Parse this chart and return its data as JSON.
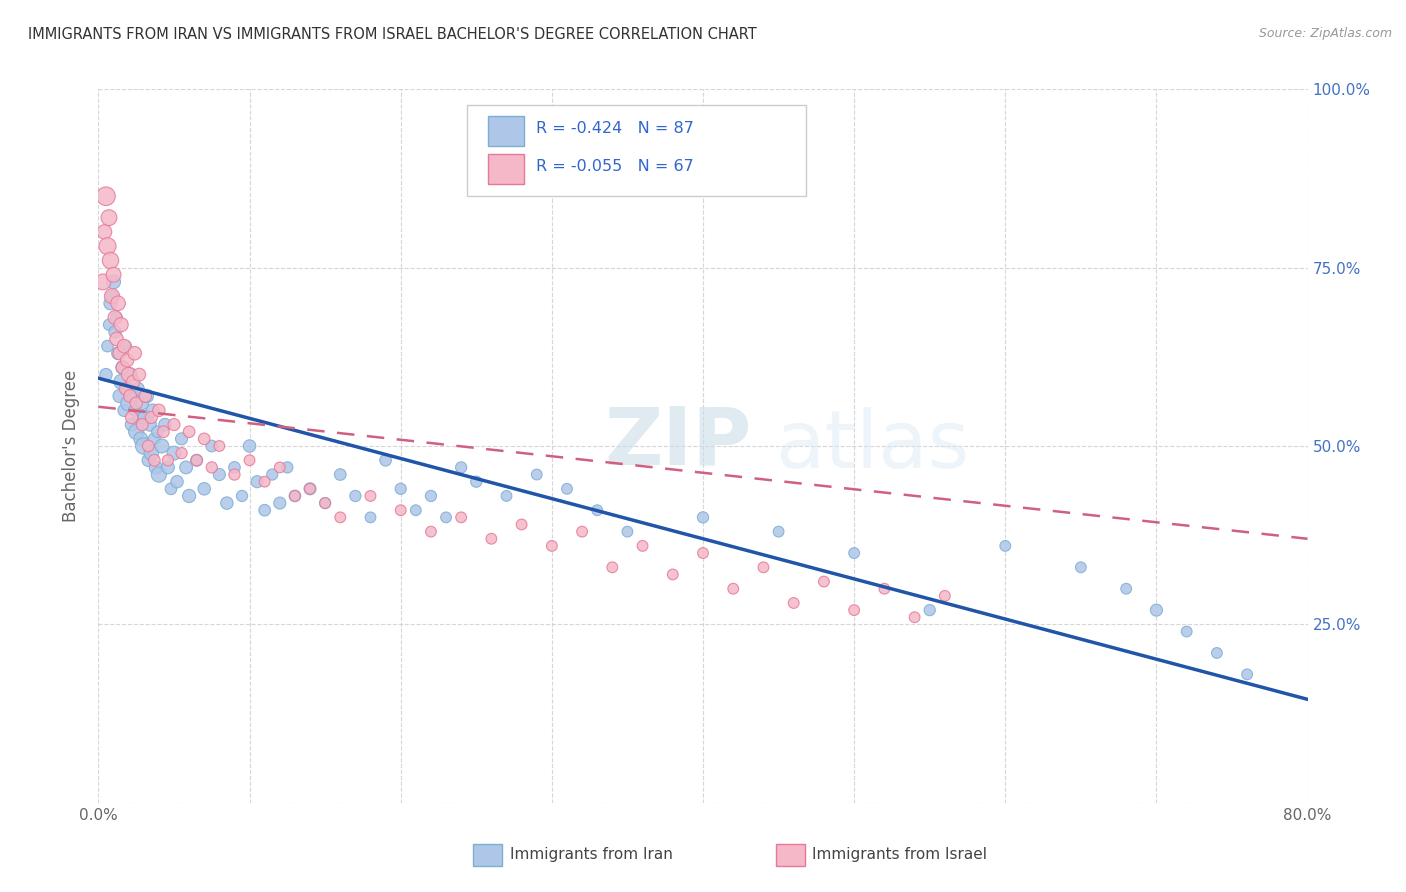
{
  "title": "IMMIGRANTS FROM IRAN VS IMMIGRANTS FROM ISRAEL BACHELOR'S DEGREE CORRELATION CHART",
  "source": "Source: ZipAtlas.com",
  "ylabel": "Bachelor's Degree",
  "xmin": 0.0,
  "xmax": 0.8,
  "ymin": 0.0,
  "ymax": 1.0,
  "iran_color": "#aec6e8",
  "iran_edge_color": "#7bafd4",
  "israel_color": "#f4b8c8",
  "israel_edge_color": "#e87898",
  "iran_line_color": "#2155a8",
  "israel_line_color": "#d06080",
  "legend_iran_label": "Immigrants from Iran",
  "legend_israel_label": "Immigrants from Israel",
  "iran_R": -0.424,
  "iran_N": 87,
  "israel_R": -0.055,
  "israel_N": 67,
  "watermark_zip": "ZIP",
  "watermark_atlas": "atlas",
  "iran_line_x0": 0.0,
  "iran_line_y0": 0.595,
  "iran_line_x1": 0.8,
  "iran_line_y1": 0.145,
  "israel_line_x0": 0.0,
  "israel_line_y0": 0.555,
  "israel_line_x1": 0.8,
  "israel_line_y1": 0.37,
  "iran_scatter_x": [
    0.005,
    0.006,
    0.007,
    0.008,
    0.009,
    0.01,
    0.011,
    0.012,
    0.013,
    0.014,
    0.015,
    0.016,
    0.017,
    0.018,
    0.019,
    0.02,
    0.021,
    0.022,
    0.023,
    0.024,
    0.025,
    0.026,
    0.027,
    0.028,
    0.029,
    0.03,
    0.031,
    0.032,
    0.033,
    0.034,
    0.035,
    0.036,
    0.037,
    0.038,
    0.039,
    0.04,
    0.042,
    0.044,
    0.046,
    0.048,
    0.05,
    0.052,
    0.055,
    0.058,
    0.06,
    0.065,
    0.07,
    0.075,
    0.08,
    0.085,
    0.09,
    0.095,
    0.1,
    0.105,
    0.11,
    0.115,
    0.12,
    0.125,
    0.13,
    0.14,
    0.15,
    0.16,
    0.17,
    0.18,
    0.19,
    0.2,
    0.21,
    0.22,
    0.23,
    0.24,
    0.25,
    0.27,
    0.29,
    0.31,
    0.33,
    0.35,
    0.4,
    0.45,
    0.5,
    0.55,
    0.6,
    0.65,
    0.68,
    0.7,
    0.72,
    0.74,
    0.76
  ],
  "iran_scatter_y": [
    0.6,
    0.64,
    0.67,
    0.7,
    0.71,
    0.73,
    0.66,
    0.68,
    0.63,
    0.57,
    0.59,
    0.61,
    0.55,
    0.64,
    0.58,
    0.56,
    0.6,
    0.53,
    0.57,
    0.55,
    0.52,
    0.58,
    0.54,
    0.51,
    0.56,
    0.5,
    0.54,
    0.57,
    0.48,
    0.53,
    0.49,
    0.55,
    0.51,
    0.47,
    0.52,
    0.46,
    0.5,
    0.53,
    0.47,
    0.44,
    0.49,
    0.45,
    0.51,
    0.47,
    0.43,
    0.48,
    0.44,
    0.5,
    0.46,
    0.42,
    0.47,
    0.43,
    0.5,
    0.45,
    0.41,
    0.46,
    0.42,
    0.47,
    0.43,
    0.44,
    0.42,
    0.46,
    0.43,
    0.4,
    0.48,
    0.44,
    0.41,
    0.43,
    0.4,
    0.47,
    0.45,
    0.43,
    0.46,
    0.44,
    0.41,
    0.38,
    0.4,
    0.38,
    0.35,
    0.27,
    0.36,
    0.33,
    0.3,
    0.27,
    0.24,
    0.21,
    0.18
  ],
  "iran_scatter_size": [
    80,
    70,
    65,
    90,
    75,
    100,
    80,
    70,
    85,
    90,
    110,
    95,
    80,
    70,
    90,
    130,
    100,
    85,
    75,
    70,
    120,
    90,
    80,
    100,
    85,
    140,
    110,
    95,
    80,
    90,
    110,
    85,
    75,
    90,
    70,
    120,
    100,
    80,
    85,
    70,
    100,
    80,
    75,
    85,
    90,
    75,
    80,
    70,
    75,
    80,
    70,
    65,
    80,
    75,
    70,
    65,
    75,
    65,
    70,
    75,
    65,
    70,
    65,
    60,
    70,
    65,
    60,
    65,
    60,
    65,
    65,
    60,
    60,
    60,
    60,
    60,
    65,
    60,
    60,
    65,
    60,
    60,
    60,
    75,
    60,
    60,
    60
  ],
  "israel_scatter_x": [
    0.003,
    0.004,
    0.005,
    0.006,
    0.007,
    0.008,
    0.009,
    0.01,
    0.011,
    0.012,
    0.013,
    0.014,
    0.015,
    0.016,
    0.017,
    0.018,
    0.019,
    0.02,
    0.021,
    0.022,
    0.023,
    0.024,
    0.025,
    0.027,
    0.029,
    0.031,
    0.033,
    0.035,
    0.037,
    0.04,
    0.043,
    0.046,
    0.05,
    0.055,
    0.06,
    0.065,
    0.07,
    0.075,
    0.08,
    0.09,
    0.1,
    0.11,
    0.12,
    0.13,
    0.14,
    0.15,
    0.16,
    0.18,
    0.2,
    0.22,
    0.24,
    0.26,
    0.28,
    0.3,
    0.32,
    0.34,
    0.36,
    0.38,
    0.4,
    0.42,
    0.44,
    0.46,
    0.48,
    0.5,
    0.52,
    0.54,
    0.56
  ],
  "israel_scatter_y": [
    0.73,
    0.8,
    0.85,
    0.78,
    0.82,
    0.76,
    0.71,
    0.74,
    0.68,
    0.65,
    0.7,
    0.63,
    0.67,
    0.61,
    0.64,
    0.58,
    0.62,
    0.6,
    0.57,
    0.54,
    0.59,
    0.63,
    0.56,
    0.6,
    0.53,
    0.57,
    0.5,
    0.54,
    0.48,
    0.55,
    0.52,
    0.48,
    0.53,
    0.49,
    0.52,
    0.48,
    0.51,
    0.47,
    0.5,
    0.46,
    0.48,
    0.45,
    0.47,
    0.43,
    0.44,
    0.42,
    0.4,
    0.43,
    0.41,
    0.38,
    0.4,
    0.37,
    0.39,
    0.36,
    0.38,
    0.33,
    0.36,
    0.32,
    0.35,
    0.3,
    0.33,
    0.28,
    0.31,
    0.27,
    0.3,
    0.26,
    0.29
  ],
  "israel_scatter_size": [
    130,
    110,
    180,
    150,
    130,
    140,
    120,
    115,
    100,
    95,
    110,
    90,
    105,
    85,
    95,
    80,
    90,
    110,
    85,
    80,
    90,
    95,
    80,
    85,
    75,
    80,
    70,
    75,
    70,
    80,
    70,
    65,
    75,
    65,
    70,
    65,
    70,
    65,
    60,
    65,
    60,
    60,
    60,
    60,
    60,
    60,
    60,
    60,
    60,
    60,
    60,
    60,
    60,
    60,
    60,
    60,
    60,
    60,
    60,
    60,
    60,
    60,
    60,
    60,
    60,
    60,
    60
  ]
}
